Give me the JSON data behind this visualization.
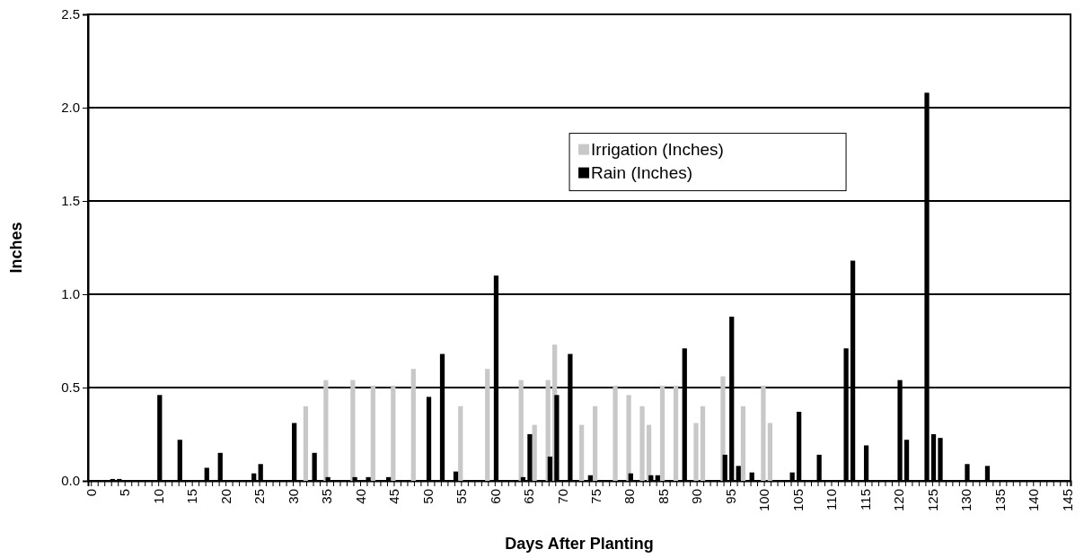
{
  "chart_data": {
    "type": "bar",
    "xlabel": "Days After Planting",
    "ylabel": "Inches",
    "categories": [
      "0",
      null,
      null,
      null,
      null,
      "5",
      null,
      null,
      null,
      null,
      "10",
      null,
      null,
      null,
      null,
      "15",
      null,
      null,
      null,
      null,
      "20",
      null,
      null,
      null,
      null,
      "25",
      null,
      null,
      null,
      null,
      "30",
      null,
      null,
      null,
      null,
      "35",
      null,
      null,
      null,
      null,
      "40",
      null,
      null,
      null,
      null,
      "45",
      null,
      null,
      null,
      null,
      "50",
      null,
      null,
      null,
      null,
      "55",
      null,
      null,
      null,
      null,
      "60",
      null,
      null,
      null,
      null,
      "65",
      null,
      null,
      null,
      null,
      "70",
      null,
      null,
      null,
      null,
      "75",
      null,
      null,
      null,
      null,
      "80",
      null,
      null,
      null,
      null,
      "85",
      null,
      null,
      null,
      null,
      "90",
      null,
      null,
      null,
      null,
      "95",
      null,
      null,
      null,
      null,
      "100",
      null,
      null,
      null,
      null,
      "105",
      null,
      null,
      null,
      null,
      "110",
      null,
      null,
      null,
      null,
      "115",
      null,
      null,
      null,
      null,
      "120",
      null,
      null,
      null,
      null,
      "125",
      null,
      null,
      null,
      null,
      "130",
      null,
      null,
      null,
      null,
      "135",
      null,
      null,
      null,
      null,
      "140",
      null,
      null,
      null,
      null,
      "145"
    ],
    "series": [
      {
        "name": "Irrigation (Inches)",
        "color": "#c8c8c8",
        "values": [
          0,
          0,
          0,
          0,
          0,
          0,
          0,
          0,
          0,
          0,
          0,
          0,
          0,
          0,
          0,
          0,
          0,
          0,
          0,
          0,
          0,
          0,
          0,
          0,
          0,
          0,
          0,
          0,
          0,
          0,
          0,
          0,
          0.4,
          0,
          0,
          0.54,
          0,
          0,
          0,
          0.54,
          0,
          0,
          0.51,
          0,
          0,
          0.51,
          0,
          0,
          0.6,
          0,
          0,
          0,
          0,
          0,
          0,
          0.4,
          0,
          0,
          0,
          0.6,
          0,
          0,
          0,
          0,
          0.54,
          0,
          0.3,
          0,
          0.54,
          0.73,
          0,
          0,
          0,
          0.3,
          0,
          0.4,
          0,
          0,
          0.51,
          0,
          0.46,
          0,
          0.4,
          0.3,
          0,
          0.51,
          0,
          0.51,
          0,
          0,
          0.31,
          0.4,
          0,
          0,
          0.56,
          0,
          0,
          0.4,
          0,
          0,
          0.51,
          0.31,
          0,
          0,
          0,
          0,
          0,
          0,
          0,
          0,
          0,
          0,
          0,
          0,
          0,
          0,
          0,
          0,
          0,
          0,
          0,
          0,
          0,
          0,
          0,
          0,
          0,
          0,
          0,
          0,
          0,
          0,
          0,
          0,
          0,
          0,
          0,
          0,
          0,
          0,
          0,
          0,
          0,
          0,
          0,
          0
        ]
      },
      {
        "name": "Rain (Inches)",
        "color": "#000000",
        "values": [
          0,
          0,
          0,
          0.01,
          0.01,
          0,
          0,
          0,
          0,
          0,
          0.46,
          0,
          0,
          0.22,
          0,
          0,
          0,
          0.07,
          0,
          0.15,
          0,
          0,
          0,
          0,
          0.04,
          0.09,
          0,
          0,
          0,
          0,
          0.31,
          0,
          0,
          0.15,
          0,
          0.02,
          0,
          0,
          0,
          0.02,
          0,
          0.02,
          0,
          0,
          0.02,
          0,
          0,
          0,
          0,
          0,
          0.45,
          0,
          0.68,
          0,
          0.05,
          0,
          0,
          0,
          0,
          0,
          1.1,
          0,
          0,
          0,
          0.02,
          0.25,
          0,
          0,
          0.13,
          0.46,
          0,
          0.68,
          0,
          0,
          0.03,
          0,
          0,
          0,
          0,
          0,
          0.04,
          0,
          0,
          0.03,
          0.03,
          0,
          0,
          0,
          0.71,
          0,
          0,
          0,
          0,
          0,
          0.14,
          0.88,
          0.08,
          0,
          0.045,
          0,
          0,
          0,
          0,
          0,
          0.045,
          0.37,
          0,
          0,
          0.14,
          0,
          0,
          0,
          0.71,
          1.18,
          0,
          0.19,
          0,
          0,
          0,
          0,
          0.54,
          0.22,
          0,
          0,
          2.08,
          0.25,
          0.23,
          0,
          0,
          0,
          0.09,
          0,
          0,
          0.08,
          0,
          0,
          0,
          0,
          0,
          0,
          0,
          0,
          0,
          0,
          0,
          0
        ]
      }
    ],
    "ylim": [
      0,
      2.5
    ],
    "yticks": [
      {
        "value": 0,
        "label": "0.0"
      },
      {
        "value": 0.5,
        "label": "0.5"
      },
      {
        "value": 1,
        "label": "1.0"
      },
      {
        "value": 1.5,
        "label": "1.5"
      },
      {
        "value": 2,
        "label": "2.0"
      },
      {
        "value": 2.5,
        "label": "2.5"
      }
    ],
    "grid": "y",
    "legend": "top right"
  }
}
